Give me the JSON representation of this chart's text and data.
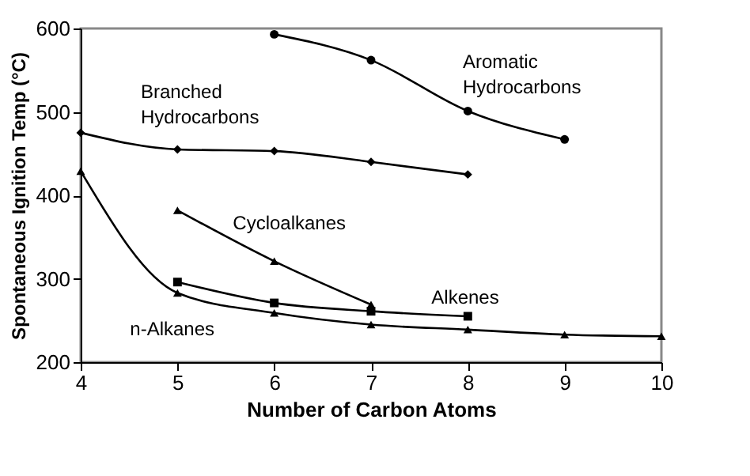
{
  "chart_data": {
    "type": "line",
    "xlabel": "Number of Carbon Atoms",
    "ylabel": "Spontaneous Ignition Temp (°C)",
    "xlim": [
      4,
      10
    ],
    "xticks": [
      4,
      5,
      6,
      7,
      8,
      9,
      10
    ],
    "ylim": [
      200,
      600
    ],
    "yticks": [
      200,
      300,
      400,
      500,
      600
    ],
    "grid": false,
    "series": [
      {
        "name": "Aromatic\nHydrocarbons",
        "color": "#000000",
        "marker": "circle",
        "x": [
          6,
          7,
          8,
          9
        ],
        "values": [
          593,
          562,
          501,
          467
        ]
      },
      {
        "name": "Branched\nHydrocarbons",
        "color": "#000000",
        "marker": "diamond",
        "x": [
          4,
          5,
          6,
          7,
          8
        ],
        "values": [
          475,
          455,
          453,
          440,
          425
        ]
      },
      {
        "name": "Cycloalkanes",
        "color": "#000000",
        "marker": "triangle",
        "x": [
          5,
          6,
          7
        ],
        "values": [
          382,
          321,
          269
        ]
      },
      {
        "name": "Alkenes",
        "color": "#000000",
        "marker": "square",
        "x": [
          5,
          6,
          7,
          8
        ],
        "values": [
          296,
          271,
          261,
          255
        ]
      },
      {
        "name": "n-Alkanes",
        "color": "#000000",
        "marker": "triangle",
        "x": [
          4,
          5,
          6,
          7,
          8,
          9,
          10
        ],
        "values": [
          429,
          283,
          259,
          245,
          239,
          233,
          231
        ]
      }
    ]
  }
}
